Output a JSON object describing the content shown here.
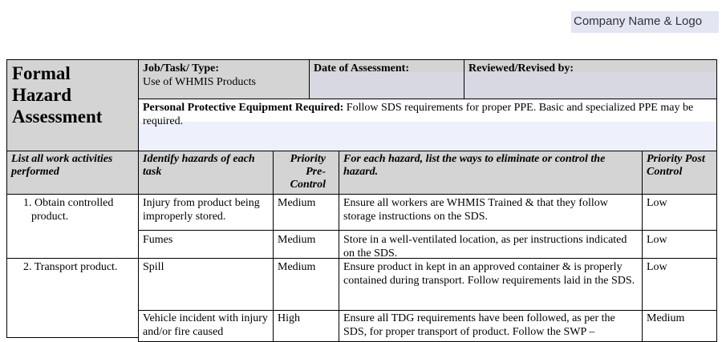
{
  "logo": "Company Name & Logo",
  "header": {
    "title_lines": [
      "Formal",
      "Hazard",
      "Assessment"
    ],
    "job_label": "Job/Task/ Type:",
    "job_value": "Use of WHMIS Products",
    "date_label": "Date of Assessment:",
    "reviewed_label": "Reviewed/Revised by:",
    "ppe_label": "Personal Protective Equipment Required:",
    "ppe_value": " Follow SDS requirements for proper PPE. Basic and specialized PPE may be required."
  },
  "columns": [
    "List all work activities performed",
    "Identify hazards of each task",
    "Priority Pre-Control",
    "For each hazard, list the ways to eliminate or control the hazard.",
    "Priority Post Control"
  ],
  "activities": [
    "1.  Obtain controlled product.",
    "2.  Transport product."
  ],
  "rows": [
    {
      "hazard": "Injury from product being improperly stored.",
      "pre": "Medium",
      "control": "Ensure all workers are WHMIS Trained & that they follow storage instructions on the SDS.",
      "post": "Low"
    },
    {
      "hazard": "Fumes",
      "pre": "Medium",
      "control": "Store in a well-ventilated location, as per instructions indicated on the SDS.",
      "post": "Low"
    },
    {
      "hazard": "Spill",
      "pre": "Medium",
      "control": "Ensure product in kept in an approved container & is properly contained during transport.  Follow requirements laid in the SDS.",
      "post": "Low"
    },
    {
      "hazard": "Vehicle incident with injury and/or fire caused",
      "pre": "High",
      "control": "Ensure all TDG requirements have been followed, as per the SDS, for proper transport of product.  Follow the SWP –",
      "post": "Medium"
    }
  ]
}
